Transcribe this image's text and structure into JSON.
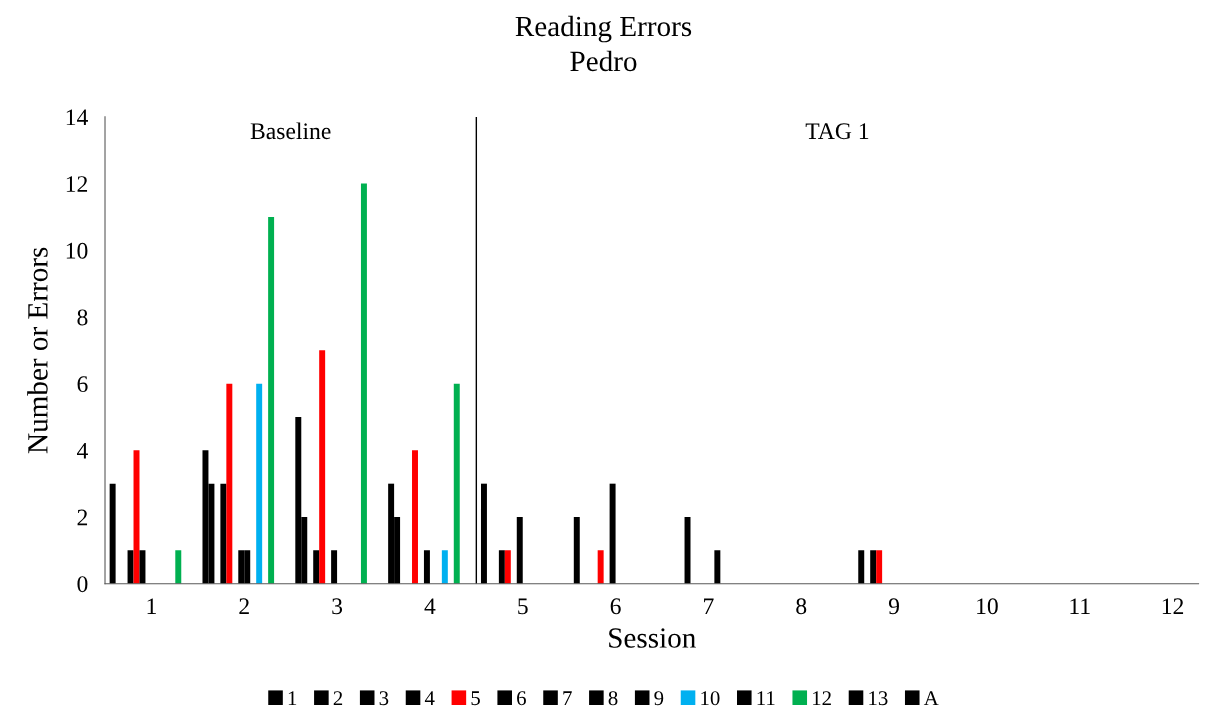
{
  "chart_data": {
    "type": "bar",
    "title": "Reading Errors",
    "subtitle": "Pedro",
    "xlabel": "Session",
    "ylabel": "Number or Errors",
    "x": [
      1,
      2,
      3,
      4,
      5,
      6,
      7,
      8,
      9,
      10,
      11,
      12
    ],
    "xlim": [
      0.5,
      12.28
    ],
    "xticks": [
      1,
      2,
      3,
      4,
      5,
      6,
      7,
      8,
      9,
      10,
      11,
      12
    ],
    "ylim": [
      0,
      14
    ],
    "yticks": [
      0,
      2,
      4,
      6,
      8,
      10,
      12,
      14
    ],
    "grid": false,
    "legend": "bottom",
    "ref_lines": [
      {
        "axis": "x",
        "value": 4.5,
        "color": "#000000"
      }
    ],
    "annotations": [
      "Baseline",
      "TAG 1"
    ],
    "series": [
      {
        "name": "1",
        "color": "#000000",
        "values": [
          3,
          4,
          5,
          3,
          3,
          2,
          0,
          0,
          0,
          0,
          0,
          0
        ]
      },
      {
        "name": "2",
        "color": "#000000",
        "values": [
          0,
          3,
          2,
          2,
          0,
          0,
          0,
          0,
          1,
          0,
          0,
          0
        ]
      },
      {
        "name": "3",
        "color": "#000000",
        "values": [
          0,
          0,
          0,
          0,
          0,
          0,
          0,
          0,
          0,
          0,
          0,
          0
        ]
      },
      {
        "name": "4",
        "color": "#000000",
        "values": [
          1,
          3,
          1,
          0,
          1,
          0,
          2,
          0,
          1,
          0,
          0,
          0
        ]
      },
      {
        "name": "5",
        "color": "#ff0000",
        "values": [
          4,
          6,
          7,
          4,
          1,
          1,
          0,
          0,
          1,
          0,
          0,
          0
        ]
      },
      {
        "name": "6",
        "color": "#000000",
        "values": [
          1,
          0,
          0,
          0,
          0,
          0,
          0,
          0,
          0,
          0,
          0,
          0
        ]
      },
      {
        "name": "7",
        "color": "#000000",
        "values": [
          0,
          1,
          1,
          1,
          2,
          3,
          0,
          0,
          0,
          0,
          0,
          0
        ]
      },
      {
        "name": "8",
        "color": "#000000",
        "values": [
          0,
          1,
          0,
          0,
          0,
          0,
          0,
          0,
          0,
          0,
          0,
          0
        ]
      },
      {
        "name": "9",
        "color": "#000000",
        "values": [
          0,
          0,
          0,
          0,
          0,
          0,
          1,
          0,
          0,
          0,
          0,
          0
        ]
      },
      {
        "name": "10",
        "color": "#00b0f0",
        "values": [
          0,
          6,
          0,
          1,
          0,
          0,
          0,
          0,
          0,
          0,
          0,
          0
        ]
      },
      {
        "name": "11",
        "color": "#000000",
        "values": [
          0,
          0,
          0,
          0,
          0,
          0,
          0,
          0,
          0,
          0,
          0,
          0
        ]
      },
      {
        "name": "12",
        "color": "#00b050",
        "values": [
          1,
          11,
          12,
          6,
          0,
          0,
          0,
          0,
          0,
          0,
          0,
          0
        ]
      },
      {
        "name": "13",
        "color": "#000000",
        "values": [
          0,
          0,
          0,
          0,
          0,
          0,
          0,
          0,
          0,
          0,
          0,
          0
        ]
      },
      {
        "name": "A",
        "color": "#000000",
        "values": [
          0,
          0,
          0,
          0,
          0,
          0,
          0,
          0,
          0,
          0,
          0,
          0
        ]
      }
    ]
  }
}
